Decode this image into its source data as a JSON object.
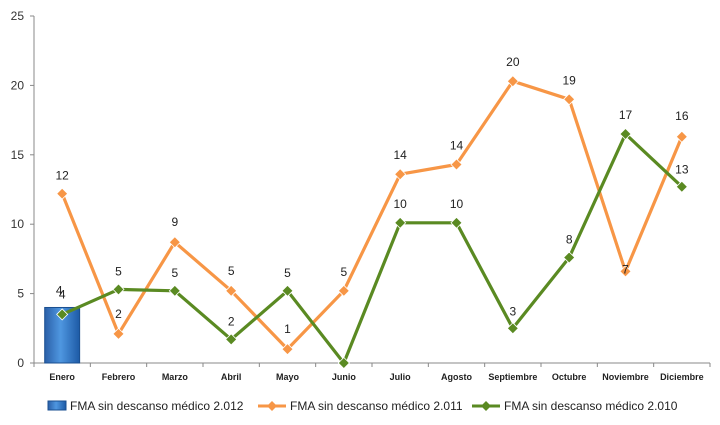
{
  "chart_data": {
    "type": "line",
    "categories": [
      "Enero",
      "Febrero",
      "Marzo",
      "Abril",
      "Mayo",
      "Junio",
      "Julio",
      "Agosto",
      "Septiembre",
      "Octubre",
      "Noviembre",
      "Diciembre"
    ],
    "ylim": [
      0,
      25
    ],
    "yticks": [
      "0",
      "5",
      "10",
      "15",
      "20",
      "25"
    ],
    "grid": false,
    "legend_position": "bottom",
    "series": [
      {
        "name": "FMA sin descanso médico 2.012",
        "kind": "bar",
        "color": "#1f6fc0",
        "values": [
          4,
          null,
          null,
          null,
          null,
          null,
          null,
          null,
          null,
          null,
          null,
          null
        ],
        "labels": [
          "4",
          "",
          "",
          "",
          "",
          "",
          "",
          "",
          "",
          "",
          "",
          ""
        ]
      },
      {
        "name": "FMA sin descanso médico 2.011",
        "kind": "line",
        "color": "#f79646",
        "values": [
          12.2,
          2.1,
          8.7,
          5.2,
          1.0,
          5.2,
          13.6,
          14.3,
          20.3,
          19.0,
          6.6,
          16.3
        ],
        "labels": [
          "12",
          "2",
          "9",
          "5",
          "1",
          "5",
          "14",
          "14",
          "20",
          "19",
          "7",
          "16"
        ]
      },
      {
        "name": "FMA sin descanso médico 2.010",
        "kind": "line",
        "color": "#5a8a22",
        "values": [
          3.5,
          5.3,
          5.2,
          1.7,
          5.2,
          0.0,
          10.1,
          10.1,
          2.5,
          7.6,
          16.5,
          12.7
        ],
        "labels": [
          "4",
          "5",
          "5",
          "2",
          "5",
          "",
          "10",
          "10",
          "3",
          "8",
          "17",
          "13"
        ]
      }
    ]
  }
}
